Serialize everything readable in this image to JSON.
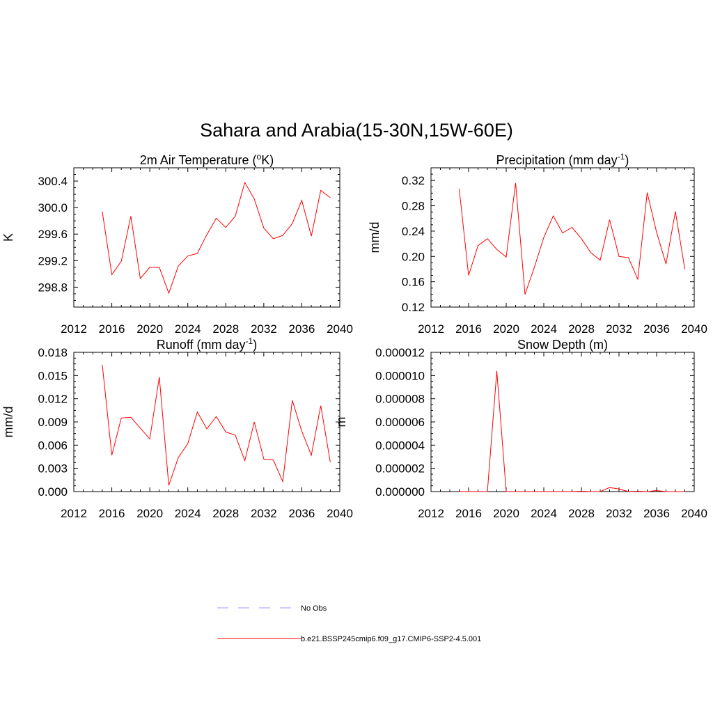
{
  "figure": {
    "title": "Sahara and Arabia(15-30N,15W-60E)"
  },
  "legend": {
    "entries": [
      {
        "label": "No Obs",
        "color": "#9999ff",
        "style": "dashed"
      },
      {
        "label": "b.e21.BSSP245cmip6.f09_g17.CMIP6-SSP2-4.5.001",
        "color": "#ff0000",
        "style": "solid"
      }
    ]
  },
  "chart_data": [
    {
      "id": "temp",
      "type": "line",
      "title": "2m Air Temperature (",
      "title_sup_prefix": "o",
      "title_suffix": "K)",
      "ylabel": "K",
      "xlim": [
        2012,
        2040
      ],
      "ylim": [
        298.5,
        300.6
      ],
      "xticks": [
        2012,
        2016,
        2020,
        2024,
        2028,
        2032,
        2036,
        2040
      ],
      "yticks": [
        "298.8",
        "299.2",
        "299.6",
        "300.0",
        "300.4"
      ],
      "x": [
        2015,
        2016,
        2017,
        2018,
        2019,
        2020,
        2021,
        2022,
        2023,
        2024,
        2025,
        2026,
        2027,
        2028,
        2029,
        2030,
        2031,
        2032,
        2033,
        2034,
        2035,
        2036,
        2037,
        2038,
        2039
      ],
      "series": [
        {
          "color": "#ff0000",
          "values": [
            299.94,
            298.99,
            299.19,
            299.87,
            298.93,
            299.1,
            299.1,
            298.71,
            299.12,
            299.27,
            299.31,
            299.59,
            299.84,
            299.7,
            299.87,
            300.38,
            300.13,
            299.69,
            299.53,
            299.58,
            299.76,
            300.11,
            299.57,
            300.26,
            300.15
          ]
        }
      ]
    },
    {
      "id": "precip",
      "type": "line",
      "title": "Precipitation (mm day",
      "title_sup": "-1",
      "title_suffix": ")",
      "ylabel": "mm/d",
      "xlim": [
        2012,
        2040
      ],
      "ylim": [
        0.12,
        0.34
      ],
      "xticks": [
        2012,
        2016,
        2020,
        2024,
        2028,
        2032,
        2036,
        2040
      ],
      "yticks": [
        "0.12",
        "0.16",
        "0.20",
        "0.24",
        "0.28",
        "0.32"
      ],
      "x": [
        2015,
        2016,
        2017,
        2018,
        2019,
        2020,
        2021,
        2022,
        2023,
        2024,
        2025,
        2026,
        2027,
        2028,
        2029,
        2030,
        2031,
        2032,
        2033,
        2034,
        2035,
        2036,
        2037,
        2038,
        2039
      ],
      "series": [
        {
          "color": "#ff0000",
          "values": [
            0.307,
            0.17,
            0.217,
            0.228,
            0.211,
            0.199,
            0.316,
            0.14,
            0.183,
            0.23,
            0.264,
            0.237,
            0.246,
            0.228,
            0.206,
            0.194,
            0.258,
            0.2,
            0.198,
            0.164,
            0.301,
            0.238,
            0.188,
            0.271,
            0.18
          ]
        }
      ]
    },
    {
      "id": "runoff",
      "type": "line",
      "title": "Runoff (mm day",
      "title_sup": "-1",
      "title_suffix": ")",
      "ylabel": "mm/d",
      "xlim": [
        2012,
        2040
      ],
      "ylim": [
        0.0,
        0.018
      ],
      "xticks": [
        2012,
        2016,
        2020,
        2024,
        2028,
        2032,
        2036,
        2040
      ],
      "yticks": [
        "0.000",
        "0.003",
        "0.006",
        "0.009",
        "0.012",
        "0.015",
        "0.018"
      ],
      "x": [
        2015,
        2016,
        2017,
        2018,
        2019,
        2020,
        2021,
        2022,
        2023,
        2024,
        2025,
        2026,
        2027,
        2028,
        2029,
        2030,
        2031,
        2032,
        2033,
        2034,
        2035,
        2036,
        2037,
        2038,
        2039
      ],
      "series": [
        {
          "color": "#ff0000",
          "values": [
            0.0164,
            0.0047,
            0.0095,
            0.0096,
            0.0082,
            0.0068,
            0.0148,
            0.0008,
            0.0044,
            0.0062,
            0.0103,
            0.0081,
            0.0097,
            0.0077,
            0.0073,
            0.004,
            0.009,
            0.0042,
            0.0041,
            0.0013,
            0.0118,
            0.0078,
            0.0047,
            0.0111,
            0.0038
          ]
        }
      ]
    },
    {
      "id": "snow",
      "type": "line",
      "title": "Snow Depth (m)",
      "ylabel": "m",
      "xlim": [
        2012,
        2040
      ],
      "ylim": [
        0.0,
        1.2e-05
      ],
      "xticks": [
        2012,
        2016,
        2020,
        2024,
        2028,
        2032,
        2036,
        2040
      ],
      "yticks": [
        "0.000000",
        "0.000002",
        "0.000004",
        "0.000006",
        "0.000008",
        "0.000010",
        "0.000012"
      ],
      "x": [
        2015,
        2016,
        2017,
        2018,
        2019,
        2020,
        2021,
        2022,
        2023,
        2024,
        2025,
        2026,
        2027,
        2028,
        2029,
        2030,
        2031,
        2032,
        2033,
        2034,
        2035,
        2036,
        2037,
        2038,
        2039
      ],
      "series": [
        {
          "color": "#ff0000",
          "values": [
            0,
            0,
            0,
            0,
            1.04e-05,
            0,
            0,
            0,
            0,
            0,
            0,
            0,
            0,
            3e-08,
            0,
            0,
            3.5e-07,
            2.2e-07,
            0,
            3e-08,
            0,
            9e-08,
            0,
            0,
            0
          ]
        }
      ]
    }
  ]
}
